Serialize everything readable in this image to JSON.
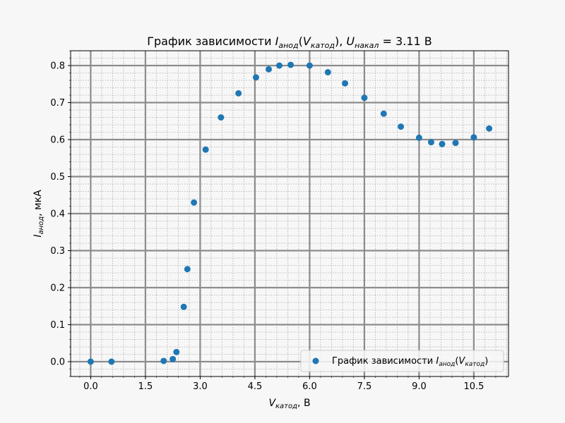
{
  "chart_data": {
    "type": "scatter",
    "title": {
      "prefix": "График зависимости ",
      "i_symbol": "I",
      "i_sub": "анод",
      "v_symbol": "V",
      "v_sub": "катод",
      "u_symbol": "U",
      "u_sub": "накал",
      "suffix": " = 3.11 В"
    },
    "xlabel": {
      "symbol": "V",
      "sub": "катод",
      "unit": ", В"
    },
    "ylabel": {
      "symbol": "I",
      "sub": "анод",
      "unit": ", мкА"
    },
    "xlim": [
      -0.55,
      11.45
    ],
    "ylim": [
      -0.04,
      0.84
    ],
    "xticks": [
      0.0,
      1.5,
      3.0,
      4.5,
      6.0,
      7.5,
      9.0,
      10.5
    ],
    "xtick_labels": [
      "0.0",
      "1.5",
      "3.0",
      "4.5",
      "6.0",
      "7.5",
      "9.0",
      "10.5"
    ],
    "yticks": [
      0.0,
      0.1,
      0.2,
      0.3,
      0.4,
      0.5,
      0.6,
      0.7,
      0.8
    ],
    "ytick_labels": [
      "0.0",
      "0.1",
      "0.2",
      "0.3",
      "0.4",
      "0.5",
      "0.6",
      "0.7",
      "0.8"
    ],
    "grid": true,
    "minor_grid": true,
    "legend": {
      "placement": "lower-right",
      "prefix": "График зависимости ",
      "i_symbol": "I",
      "i_sub": "анод",
      "v_symbol": "V",
      "v_sub": "катод"
    },
    "series": [
      {
        "x": [
          0.0,
          0.57,
          2.0,
          2.25,
          2.35,
          2.55,
          2.65,
          2.83,
          3.15,
          3.57,
          4.05,
          4.53,
          4.88,
          5.17,
          5.48,
          6.0,
          6.5,
          6.97,
          7.5,
          8.03,
          8.5,
          9.0,
          9.33,
          9.63,
          10.0,
          10.5,
          10.92
        ],
        "y": [
          0.0,
          0.0,
          0.002,
          0.007,
          0.026,
          0.148,
          0.25,
          0.43,
          0.573,
          0.66,
          0.725,
          0.768,
          0.79,
          0.8,
          0.802,
          0.8,
          0.782,
          0.752,
          0.713,
          0.67,
          0.635,
          0.605,
          0.593,
          0.588,
          0.591,
          0.606,
          0.63
        ],
        "color": "#1f77b4"
      }
    ]
  }
}
